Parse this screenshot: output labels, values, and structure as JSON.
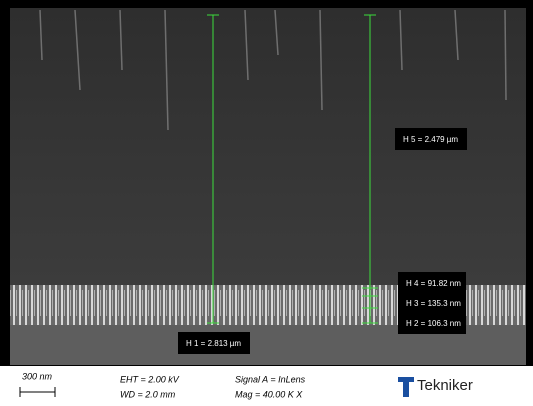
{
  "measurements": [
    {
      "label": "H 5 = 2.479 µm"
    },
    {
      "label": "H 4 = 91.82 nm"
    },
    {
      "label": "H 3 = 135.3 nm"
    },
    {
      "label": "H 2 = 106.3 nm"
    },
    {
      "label": "H 1 = 2.813 µm"
    }
  ],
  "info_bar": {
    "scale_bar": "300 nm",
    "eht": "EHT =  2.00 kV",
    "wd": "WD =  2.0 mm",
    "signal": "Signal A = InLens",
    "mag": "Mag =   40.00 K X",
    "logo": "Tekniker"
  }
}
